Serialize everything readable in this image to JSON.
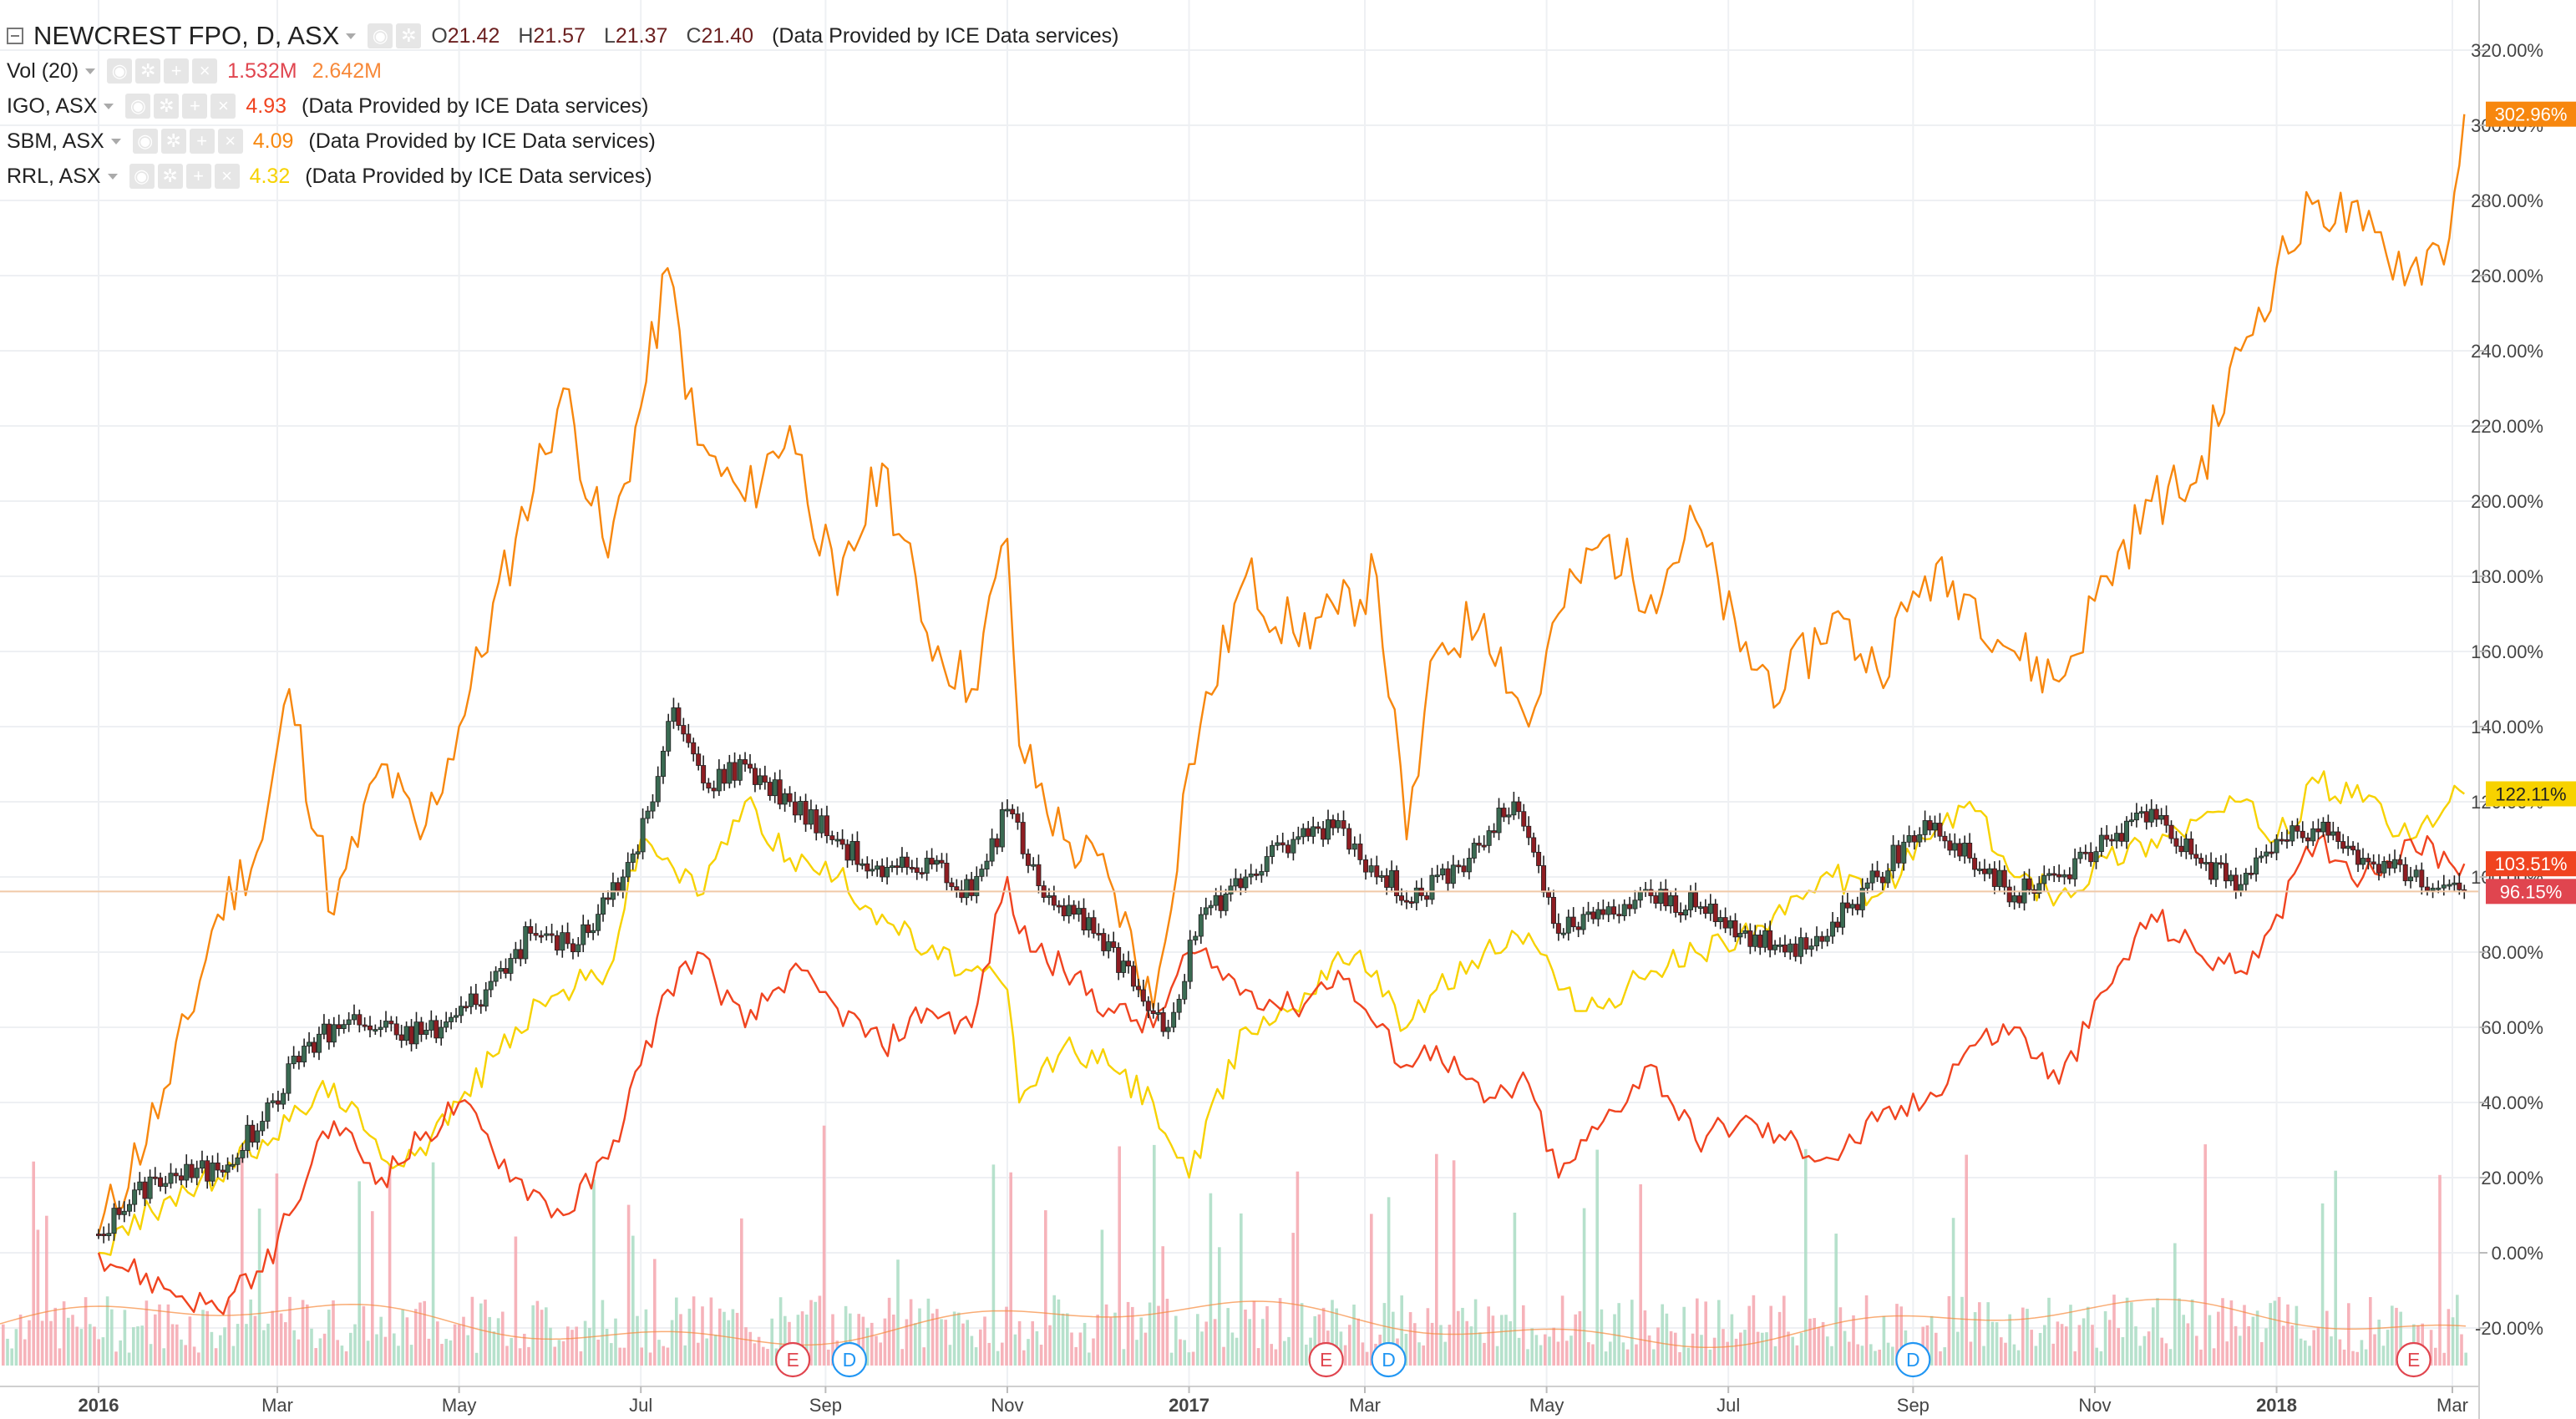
{
  "legend": {
    "main": {
      "name": "NEWCREST FPO, D, ASX",
      "open_label": "O",
      "open": "21.42",
      "high_label": "H",
      "high": "21.57",
      "low_label": "L",
      "low": "21.37",
      "close_label": "C",
      "close": "21.40",
      "note": "(Data Provided by ICE Data services)"
    },
    "vol": {
      "name": "Vol (20)",
      "value": "1.532M",
      "ma": "2.642M",
      "value_color": "#e0454f",
      "ma_color": "#f7893a"
    },
    "overlays": [
      {
        "name": "IGO, ASX",
        "value": "4.93",
        "note": "(Data Provided by ICE Data services)",
        "color": "#f04420"
      },
      {
        "name": "SBM, ASX",
        "value": "4.09",
        "note": "(Data Provided by ICE Data services)",
        "color": "#f7870e"
      },
      {
        "name": "RRL, ASX",
        "value": "4.32",
        "note": "(Data Provided by ICE Data services)",
        "color": "#f7d200"
      }
    ]
  },
  "chart_data": {
    "type": "line",
    "title": "NEWCREST FPO, D, ASX",
    "x_ticks": [
      "2016",
      "Mar",
      "May",
      "Jul",
      "Sep",
      "Nov",
      "2017",
      "Mar",
      "May",
      "Jul",
      "Sep",
      "Nov",
      "2018",
      "Mar"
    ],
    "x_tick_dates": [
      "2016-01-01",
      "2016-03-01",
      "2016-05-01",
      "2016-07-01",
      "2016-09-01",
      "2016-11-01",
      "2017-01-01",
      "2017-03-01",
      "2017-05-01",
      "2017-07-01",
      "2017-09-01",
      "2017-11-01",
      "2018-01-01",
      "2018-03-01"
    ],
    "y_axis": {
      "unit": "%",
      "min": -30,
      "max": 325,
      "ticks": [
        "320.00%",
        "300.00%",
        "280.00%",
        "260.00%",
        "240.00%",
        "220.00%",
        "200.00%",
        "180.00%",
        "160.00%",
        "140.00%",
        "120.00%",
        "100.00%",
        "80.00%",
        "60.00%",
        "40.00%",
        "20.00%",
        "0.00%",
        "-20.00%"
      ],
      "tick_values": [
        320,
        300,
        280,
        260,
        240,
        220,
        200,
        180,
        160,
        140,
        120,
        100,
        80,
        60,
        40,
        20,
        0,
        -20
      ]
    },
    "grid": true,
    "series": [
      {
        "name": "SBM, ASX",
        "color": "#f7870e",
        "last_label": "302.96%",
        "x": [
          "2016-01-01",
          "2016-01-25",
          "2016-02-10",
          "2016-02-25",
          "2016-03-05",
          "2016-03-20",
          "2016-04-05",
          "2016-04-18",
          "2016-05-01",
          "2016-05-20",
          "2016-06-05",
          "2016-06-20",
          "2016-07-01",
          "2016-07-10",
          "2016-07-20",
          "2016-08-05",
          "2016-08-20",
          "2016-09-05",
          "2016-09-20",
          "2016-10-05",
          "2016-10-20",
          "2016-11-01",
          "2016-11-05",
          "2016-11-20",
          "2016-12-05",
          "2016-12-20",
          "2017-01-01",
          "2017-01-20",
          "2017-02-05",
          "2017-02-20",
          "2017-03-05",
          "2017-03-15",
          "2017-03-25",
          "2017-04-10",
          "2017-04-25",
          "2017-05-05",
          "2017-05-20",
          "2017-06-05",
          "2017-06-20",
          "2017-07-05",
          "2017-07-20",
          "2017-08-05",
          "2017-08-20",
          "2017-09-05",
          "2017-09-20",
          "2017-10-05",
          "2017-10-20",
          "2017-11-05",
          "2017-11-20",
          "2017-12-05",
          "2017-12-20",
          "2018-01-01",
          "2018-01-15",
          "2018-01-30",
          "2018-02-15",
          "2018-02-28",
          "2018-03-05"
        ],
        "y": [
          5,
          45,
          90,
          110,
          150,
          90,
          130,
          110,
          140,
          190,
          230,
          185,
          225,
          262,
          215,
          200,
          220,
          175,
          210,
          165,
          150,
          190,
          135,
          110,
          100,
          65,
          130,
          180,
          165,
          170,
          180,
          110,
          160,
          170,
          140,
          170,
          190,
          175,
          195,
          160,
          150,
          170,
          155,
          180,
          175,
          160,
          152,
          180,
          200,
          205,
          240,
          262,
          280,
          272,
          262,
          270,
          302.96
        ]
      },
      {
        "name": "RRL, ASX",
        "color": "#f7d200",
        "last_label": "122.11%",
        "x": [
          "2016-01-01",
          "2016-01-25",
          "2016-02-10",
          "2016-02-25",
          "2016-03-05",
          "2016-03-20",
          "2016-04-05",
          "2016-04-18",
          "2016-05-01",
          "2016-05-20",
          "2016-06-05",
          "2016-06-20",
          "2016-07-01",
          "2016-07-10",
          "2016-07-20",
          "2016-08-05",
          "2016-08-20",
          "2016-09-05",
          "2016-09-20",
          "2016-10-05",
          "2016-10-20",
          "2016-11-01",
          "2016-11-05",
          "2016-11-20",
          "2016-12-05",
          "2016-12-20",
          "2017-01-01",
          "2017-01-20",
          "2017-02-05",
          "2017-02-20",
          "2017-03-05",
          "2017-03-15",
          "2017-03-25",
          "2017-04-10",
          "2017-04-25",
          "2017-05-05",
          "2017-05-20",
          "2017-06-05",
          "2017-06-20",
          "2017-07-05",
          "2017-07-20",
          "2017-08-05",
          "2017-08-20",
          "2017-09-05",
          "2017-09-20",
          "2017-10-05",
          "2017-10-20",
          "2017-11-05",
          "2017-11-20",
          "2017-12-05",
          "2017-12-20",
          "2018-01-01",
          "2018-01-15",
          "2018-01-30",
          "2018-02-15",
          "2018-02-28",
          "2018-03-05"
        ],
        "y": [
          0,
          15,
          20,
          30,
          35,
          45,
          25,
          28,
          40,
          60,
          70,
          75,
          110,
          105,
          95,
          120,
          105,
          100,
          90,
          80,
          75,
          70,
          40,
          55,
          50,
          40,
          20,
          60,
          65,
          80,
          75,
          60,
          70,
          80,
          85,
          70,
          65,
          75,
          80,
          85,
          90,
          100,
          95,
          110,
          120,
          100,
          95,
          105,
          110,
          115,
          120,
          110,
          125,
          120,
          110,
          120,
          122.11
        ]
      },
      {
        "name": "IGO, ASX",
        "color": "#f04420",
        "last_label": "103.51%",
        "x": [
          "2016-01-01",
          "2016-01-25",
          "2016-02-10",
          "2016-02-25",
          "2016-03-05",
          "2016-03-20",
          "2016-04-05",
          "2016-04-18",
          "2016-05-01",
          "2016-05-20",
          "2016-06-05",
          "2016-06-20",
          "2016-07-01",
          "2016-07-10",
          "2016-07-20",
          "2016-08-05",
          "2016-08-20",
          "2016-09-05",
          "2016-09-20",
          "2016-10-05",
          "2016-10-20",
          "2016-11-01",
          "2016-11-05",
          "2016-11-20",
          "2016-12-05",
          "2016-12-20",
          "2017-01-01",
          "2017-01-20",
          "2017-02-05",
          "2017-02-20",
          "2017-03-05",
          "2017-03-15",
          "2017-03-25",
          "2017-04-10",
          "2017-04-25",
          "2017-05-05",
          "2017-05-20",
          "2017-06-05",
          "2017-06-20",
          "2017-07-05",
          "2017-07-20",
          "2017-08-05",
          "2017-08-20",
          "2017-09-05",
          "2017-09-20",
          "2017-10-05",
          "2017-10-20",
          "2017-11-05",
          "2017-11-20",
          "2017-12-05",
          "2017-12-20",
          "2018-01-01",
          "2018-01-15",
          "2018-01-30",
          "2018-02-15",
          "2018-02-28",
          "2018-03-05"
        ],
        "y": [
          0,
          -10,
          -15,
          -5,
          10,
          35,
          20,
          30,
          40,
          20,
          10,
          25,
          50,
          70,
          80,
          60,
          75,
          65,
          55,
          65,
          60,
          100,
          85,
          75,
          65,
          60,
          80,
          70,
          65,
          75,
          60,
          50,
          55,
          40,
          45,
          20,
          35,
          50,
          30,
          35,
          30,
          25,
          35,
          40,
          55,
          60,
          45,
          70,
          90,
          80,
          75,
          90,
          110,
          100,
          110,
          104,
          103.51
        ]
      }
    ],
    "candles": {
      "name": "NEWCREST FPO, D, ASX",
      "last_label": "96.15%",
      "up_color": "#3a6a52",
      "down_color": "#8e1d22",
      "x": [
        "2016-01-01",
        "2016-01-20",
        "2016-02-10",
        "2016-02-25",
        "2016-03-10",
        "2016-03-25",
        "2016-04-10",
        "2016-04-25",
        "2016-05-10",
        "2016-05-25",
        "2016-06-10",
        "2016-06-25",
        "2016-07-05",
        "2016-07-12",
        "2016-07-22",
        "2016-08-05",
        "2016-08-20",
        "2016-09-05",
        "2016-09-20",
        "2016-10-05",
        "2016-10-20",
        "2016-11-01",
        "2016-11-15",
        "2016-11-30",
        "2016-12-15",
        "2016-12-25",
        "2017-01-05",
        "2017-01-20",
        "2017-02-05",
        "2017-02-20",
        "2017-03-05",
        "2017-03-20",
        "2017-04-05",
        "2017-04-20",
        "2017-05-05",
        "2017-05-20",
        "2017-06-05",
        "2017-06-20",
        "2017-07-05",
        "2017-07-20",
        "2017-08-05",
        "2017-08-20",
        "2017-09-05",
        "2017-09-20",
        "2017-10-05",
        "2017-10-20",
        "2017-11-05",
        "2017-11-20",
        "2017-12-05",
        "2017-12-20",
        "2018-01-01",
        "2018-01-15",
        "2018-01-30",
        "2018-02-15",
        "2018-02-28",
        "2018-03-05"
      ],
      "y": [
        5,
        20,
        22,
        35,
        55,
        62,
        58,
        60,
        70,
        85,
        82,
        100,
        120,
        145,
        125,
        130,
        120,
        110,
        100,
        105,
        95,
        118,
        95,
        85,
        70,
        60,
        90,
        100,
        110,
        115,
        100,
        95,
        105,
        120,
        85,
        90,
        95,
        92,
        85,
        80,
        88,
        100,
        115,
        105,
        95,
        100,
        110,
        118,
        105,
        98,
        110,
        112,
        105,
        100,
        98,
        96.15
      ]
    },
    "volume": {
      "name": "Vol (20)",
      "value": "1.532M",
      "ma": "2.642M"
    },
    "markers": [
      {
        "label": "E",
        "date": "2016-08-21",
        "kind": "earnings"
      },
      {
        "label": "D",
        "date": "2016-09-09",
        "kind": "dividend"
      },
      {
        "label": "E",
        "date": "2017-02-16",
        "kind": "earnings"
      },
      {
        "label": "D",
        "date": "2017-03-09",
        "kind": "dividend"
      },
      {
        "label": "D",
        "date": "2017-09-01",
        "kind": "dividend"
      },
      {
        "label": "E",
        "date": "2018-02-16",
        "kind": "earnings"
      }
    ]
  }
}
